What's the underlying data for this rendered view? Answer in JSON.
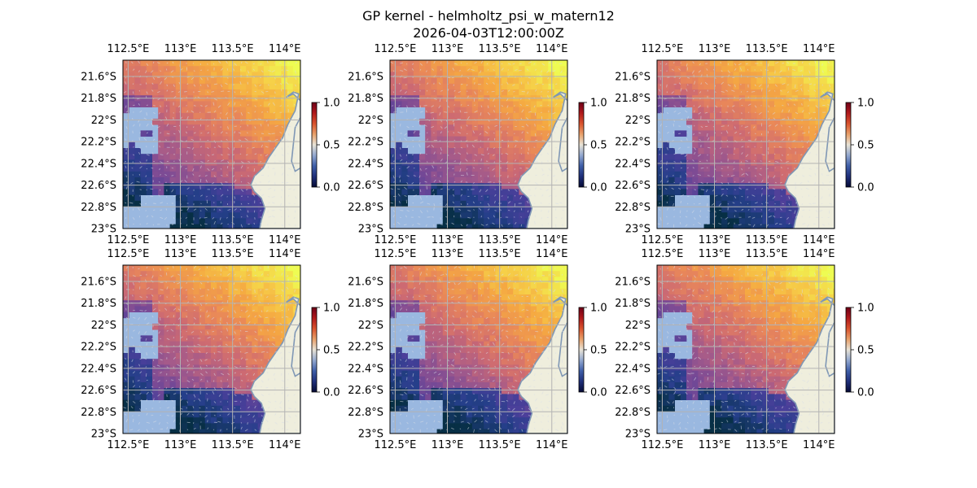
{
  "figure": {
    "title_line1": "GP kernel - helmholtz_psi_w_matern12",
    "title_line2": "2026-04-03T12:00:00Z"
  },
  "colors": {
    "ocean": "#9ab8e0",
    "land": "#efeedd",
    "coast": "#7f97b5",
    "grid": "#b3b3b3",
    "arrows": "#d9dde6",
    "colormap": [
      "#050a35",
      "#1f2f7a",
      "#3f5fa8",
      "#93a8cf",
      "#e8e3d6",
      "#e8a06a",
      "#d9532e",
      "#b0191b",
      "#6e0018"
    ],
    "field_colormap": [
      "#072f45",
      "#253f8a",
      "#4a3f9a",
      "#7a4a95",
      "#a45a8a",
      "#cd6a72",
      "#e8865a",
      "#f5a842",
      "#f6d048",
      "#eefc52"
    ]
  },
  "chart_data": [
    {
      "type": "heatmap",
      "panel": "row1-col1",
      "x_ticks": [
        "112.5°E",
        "113°E",
        "113.5°E",
        "114°E"
      ],
      "x_tick_values": [
        112.5,
        113.0,
        113.5,
        114.0
      ],
      "y_ticks": [
        "21.6°S",
        "21.8°S",
        "22°S",
        "22.2°S",
        "22.4°S",
        "22.6°S",
        "22.8°S",
        "23°S"
      ],
      "y_tick_values": [
        -21.6,
        -21.8,
        -22.0,
        -22.2,
        -22.4,
        -22.6,
        -22.8,
        -23.0
      ],
      "xlim": [
        112.45,
        114.15
      ],
      "ylim": [
        -23.0,
        -21.45
      ],
      "colorbar": {
        "ticks": [
          "0.0",
          "0.5",
          "1.0"
        ],
        "range": [
          0.0,
          1.0
        ]
      },
      "grid": true
    },
    {
      "type": "heatmap",
      "panel": "row1-col2",
      "x_ticks": [
        "112.5°E",
        "113°E",
        "113.5°E",
        "114°E"
      ],
      "x_tick_values": [
        112.5,
        113.0,
        113.5,
        114.0
      ],
      "y_ticks": [
        "21.6°S",
        "21.8°S",
        "22°S",
        "22.2°S",
        "22.4°S",
        "22.6°S",
        "22.8°S",
        "23°S"
      ],
      "y_tick_values": [
        -21.6,
        -21.8,
        -22.0,
        -22.2,
        -22.4,
        -22.6,
        -22.8,
        -23.0
      ],
      "xlim": [
        112.45,
        114.15
      ],
      "ylim": [
        -23.0,
        -21.45
      ],
      "colorbar": {
        "ticks": [
          "0.0",
          "0.5",
          "1.0"
        ],
        "range": [
          0.0,
          1.0
        ]
      },
      "grid": true
    },
    {
      "type": "heatmap",
      "panel": "row1-col3",
      "x_ticks": [
        "112.5°E",
        "113°E",
        "113.5°E",
        "114°E"
      ],
      "x_tick_values": [
        112.5,
        113.0,
        113.5,
        114.0
      ],
      "y_ticks": [
        "21.6°S",
        "21.8°S",
        "22°S",
        "22.2°S",
        "22.4°S",
        "22.6°S",
        "22.8°S",
        "23°S"
      ],
      "y_tick_values": [
        -21.6,
        -21.8,
        -22.0,
        -22.2,
        -22.4,
        -22.6,
        -22.8,
        -23.0
      ],
      "xlim": [
        112.45,
        114.15
      ],
      "ylim": [
        -23.0,
        -21.45
      ],
      "colorbar": {
        "ticks": [
          "0.0",
          "0.5",
          "1.0"
        ],
        "range": [
          0.0,
          1.0
        ]
      },
      "grid": true
    },
    {
      "type": "heatmap",
      "panel": "row2-col1",
      "x_ticks": [
        "112.5°E",
        "113°E",
        "113.5°E",
        "114°E"
      ],
      "x_tick_values": [
        112.5,
        113.0,
        113.5,
        114.0
      ],
      "y_ticks": [
        "21.6°S",
        "21.8°S",
        "22°S",
        "22.2°S",
        "22.4°S",
        "22.6°S",
        "22.8°S",
        "23°S"
      ],
      "y_tick_values": [
        -21.6,
        -21.8,
        -22.0,
        -22.2,
        -22.4,
        -22.6,
        -22.8,
        -23.0
      ],
      "xlim": [
        112.45,
        114.15
      ],
      "ylim": [
        -23.0,
        -21.45
      ],
      "colorbar": {
        "ticks": [
          "0.0",
          "0.5",
          "1.0"
        ],
        "range": [
          0.0,
          1.0
        ]
      },
      "grid": true
    },
    {
      "type": "heatmap",
      "panel": "row2-col2",
      "x_ticks": [
        "112.5°E",
        "113°E",
        "113.5°E",
        "114°E"
      ],
      "x_tick_values": [
        112.5,
        113.0,
        113.5,
        114.0
      ],
      "y_ticks": [
        "21.6°S",
        "21.8°S",
        "22°S",
        "22.2°S",
        "22.4°S",
        "22.6°S",
        "22.8°S",
        "23°S"
      ],
      "y_tick_values": [
        -21.6,
        -21.8,
        -22.0,
        -22.2,
        -22.4,
        -22.6,
        -22.8,
        -23.0
      ],
      "xlim": [
        112.45,
        114.15
      ],
      "ylim": [
        -23.0,
        -21.45
      ],
      "colorbar": {
        "ticks": [
          "0.0",
          "0.5",
          "1.0"
        ],
        "range": [
          0.0,
          1.0
        ]
      },
      "grid": true
    },
    {
      "type": "heatmap",
      "panel": "row2-col3",
      "x_ticks": [
        "112.5°E",
        "113°E",
        "113.5°E",
        "114°E"
      ],
      "x_tick_values": [
        112.5,
        113.0,
        113.5,
        114.0
      ],
      "y_ticks": [
        "21.6°S",
        "21.8°S",
        "22°S",
        "22.2°S",
        "22.4°S",
        "22.6°S",
        "22.8°S",
        "23°S"
      ],
      "y_tick_values": [
        -21.6,
        -21.8,
        -22.0,
        -22.2,
        -22.4,
        -22.6,
        -22.8,
        -23.0
      ],
      "xlim": [
        112.45,
        114.15
      ],
      "ylim": [
        -23.0,
        -21.45
      ],
      "colorbar": {
        "ticks": [
          "0.0",
          "0.5",
          "1.0"
        ],
        "range": [
          0.0,
          1.0
        ]
      },
      "grid": true
    }
  ]
}
